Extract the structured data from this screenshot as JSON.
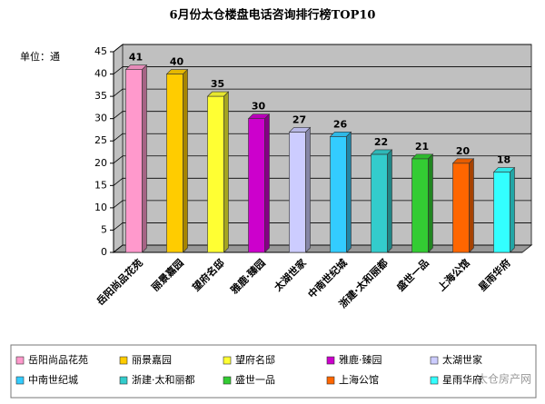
{
  "chart_data": {
    "type": "bar",
    "title": "6月份太仓楼盘电话咨询排行榜TOP10",
    "y_label": "单位：通",
    "categories": [
      "岳阳尚品花苑",
      "丽景嘉园",
      "望府名邸",
      "雅鹿·臻园",
      "太湖世家",
      "中南世纪城",
      "浙建·太和丽都",
      "盛世一品",
      "上海公馆",
      "星雨华府"
    ],
    "values": [
      41,
      40,
      35,
      30,
      27,
      26,
      22,
      21,
      20,
      18
    ],
    "colors": [
      "#ff99cc",
      "#ffcc00",
      "#ffff33",
      "#cc00cc",
      "#ccccff",
      "#33ccff",
      "#33cccc",
      "#33cc33",
      "#ff6600",
      "#33ffff"
    ],
    "ylim": [
      0,
      45
    ],
    "yticks": [
      0,
      5,
      10,
      15,
      20,
      25,
      30,
      35,
      40,
      45
    ],
    "grid": true,
    "legend": "bottom",
    "watermark": "太仓房产网"
  }
}
